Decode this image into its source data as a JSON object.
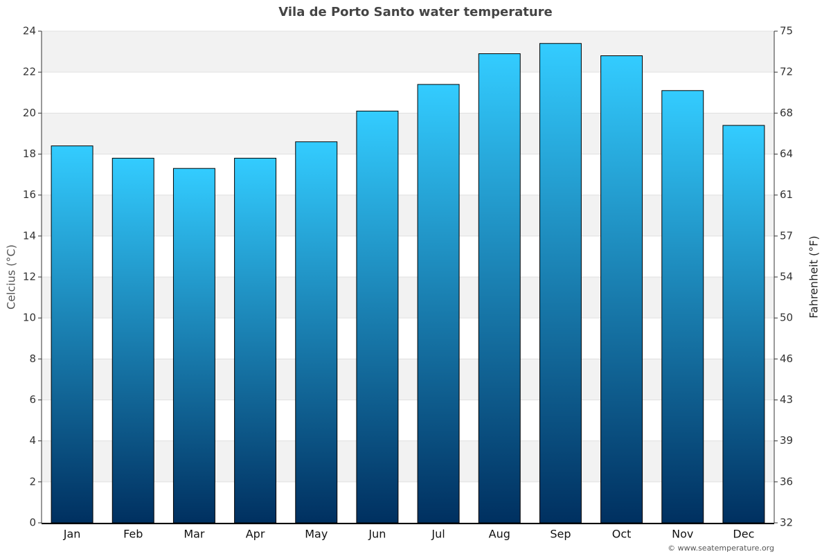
{
  "chart_data": {
    "type": "bar",
    "title": "Vila de Porto Santo water temperature",
    "categories": [
      "Jan",
      "Feb",
      "Mar",
      "Apr",
      "May",
      "Jun",
      "Jul",
      "Aug",
      "Sep",
      "Oct",
      "Nov",
      "Dec"
    ],
    "values": [
      18.4,
      17.8,
      17.3,
      17.8,
      18.6,
      20.1,
      21.4,
      22.9,
      23.4,
      22.8,
      21.1,
      19.4
    ],
    "color_top": "#33ccff",
    "color_bottom": "#003060",
    "y_label": "Celcius (°C)",
    "y2_label": "Fahrenheit (°F)",
    "ylim": [
      0,
      24
    ],
    "yticks": [
      0,
      2,
      4,
      6,
      8,
      10,
      12,
      14,
      16,
      18,
      20,
      22,
      24
    ],
    "y2lim": [
      32,
      75.2
    ],
    "y2ticks": [
      32,
      {
        "value": 35.6,
        "label": "36"
      },
      {
        "value": 39.2,
        "label": "39"
      },
      {
        "value": 42.8,
        "label": "43"
      },
      {
        "value": 46.4,
        "label": "46"
      },
      50,
      {
        "value": 53.6,
        "label": "54"
      },
      {
        "value": 57.2,
        "label": "57"
      },
      {
        "value": 60.8,
        "label": "61"
      },
      {
        "value": 64.4,
        "label": "64"
      },
      68,
      {
        "value": 71.6,
        "label": "72"
      },
      {
        "value": 75.2,
        "label": "75"
      }
    ],
    "grid": true,
    "credit": "© www.seatemperature.org"
  }
}
